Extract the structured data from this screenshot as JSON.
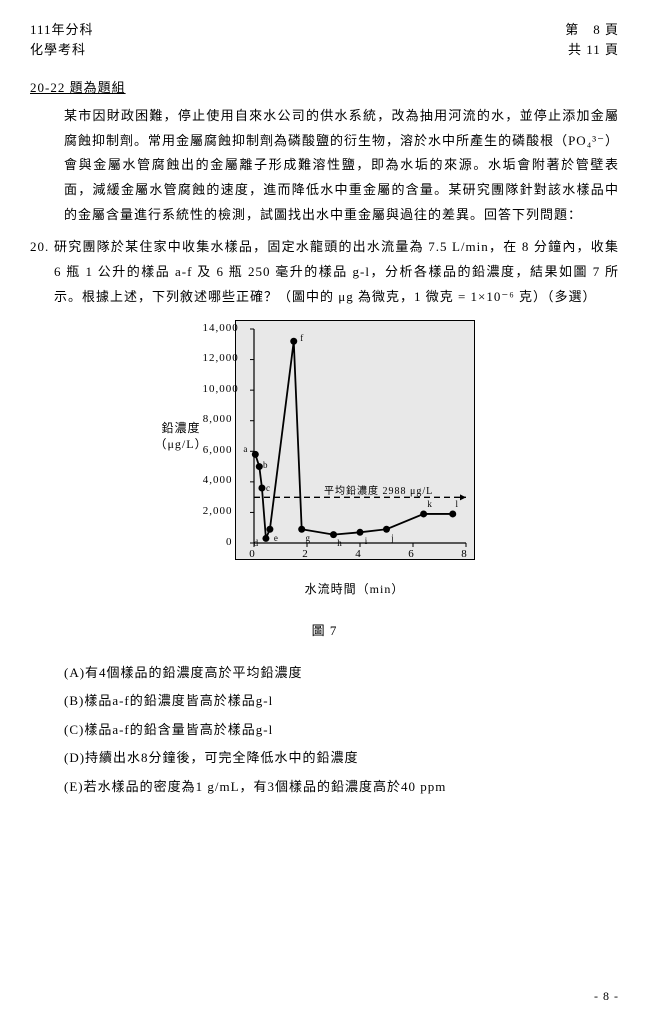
{
  "header": {
    "year_line": "111年分科",
    "subject_line": "化學考科",
    "page_label": "第　8 頁",
    "total_label": "共  11 頁"
  },
  "group_title": "20-22 題為題組",
  "intro": "某市因財政困難，停止使用自來水公司的供水系統，改為抽用河流的水，並停止添加金屬腐蝕抑制劑。常用金屬腐蝕抑制劑為磷酸鹽的衍生物，溶於水中所產生的磷酸根（PO₄³⁻）會與金屬水管腐蝕出的金屬離子形成難溶性鹽，即為水垢的來源。水垢會附著於管壁表面，減緩金屬水管腐蝕的速度，進而降低水中重金屬的含量。某研究團隊針對該水樣品中的金屬含量進行系統性的檢測，試圖找出水中重金屬與過往的差異。回答下列問題：",
  "q20": {
    "num": "20.",
    "body": "研究團隊於某住家中收集水樣品，固定水龍頭的出水流量為 7.5 L/min，在 8 分鐘內，收集 6 瓶 1 公升的樣品 a-f 及 6 瓶 250 毫升的樣品 g-l，分析各樣品的鉛濃度，結果如圖 7 所示。根據上述，下列敘述哪些正確？（圖中的 μg 為微克，1 微克 = 1×10⁻⁶ 克）（多選）"
  },
  "chart": {
    "type": "line-scatter",
    "ylabel_l1": "鉛濃度",
    "ylabel_l2": "（μg/L）",
    "xlabel": "水流時間（min）",
    "caption": "圖 7",
    "xlim": [
      0,
      8
    ],
    "ylim": [
      0,
      14000
    ],
    "xticks": [
      0,
      2,
      4,
      6,
      8
    ],
    "yticks": [
      0,
      2000,
      4000,
      6000,
      8000,
      10000,
      12000,
      14000
    ],
    "ytick_labels": [
      "0",
      "2,000",
      "4,000",
      "6,000",
      "8,000",
      "10,000",
      "12,000",
      "14,000"
    ],
    "avg_y": 2988,
    "avg_label": "平均鉛濃度 2988 μg/L",
    "points": [
      {
        "x": 0.05,
        "y": 5800,
        "l": "a"
      },
      {
        "x": 0.2,
        "y": 5000,
        "l": "b"
      },
      {
        "x": 0.3,
        "y": 3600,
        "l": "c"
      },
      {
        "x": 0.45,
        "y": 300,
        "l": "d"
      },
      {
        "x": 0.6,
        "y": 900,
        "l": "e"
      },
      {
        "x": 1.5,
        "y": 13200,
        "l": "f"
      },
      {
        "x": 1.8,
        "y": 900,
        "l": "g"
      },
      {
        "x": 3.0,
        "y": 550,
        "l": "h"
      },
      {
        "x": 4.0,
        "y": 700,
        "l": "i"
      },
      {
        "x": 5.0,
        "y": 900,
        "l": "j"
      },
      {
        "x": 6.4,
        "y": 1900,
        "l": "k"
      },
      {
        "x": 7.5,
        "y": 1900,
        "l": "l"
      }
    ],
    "bg": "#e8e8e8",
    "line_color": "#000000",
    "marker_color": "#000000"
  },
  "options": {
    "A": "(A)有4個樣品的鉛濃度高於平均鉛濃度",
    "B": "(B)樣品a-f的鉛濃度皆高於樣品g-l",
    "C": "(C)樣品a-f的鉛含量皆高於樣品g-l",
    "D": "(D)持續出水8分鐘後，可完全降低水中的鉛濃度",
    "E": "(E)若水樣品的密度為1 g/mL，有3個樣品的鉛濃度高於40 ppm"
  },
  "footer": "- 8 -"
}
